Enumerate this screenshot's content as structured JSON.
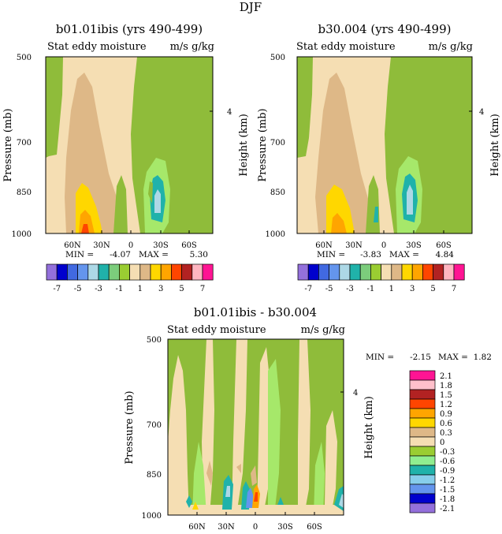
{
  "figure": {
    "title": "DJF",
    "bg": "#ffffff",
    "pressure_axis_label": "Pressure (mb)",
    "height_axis_label": "Height (km)",
    "header_left": "Stat eddy moisture",
    "header_right": "m/s g/kg",
    "min_label": "MIN =",
    "max_label": "MAX ="
  },
  "chart_data": [
    {
      "type": "heatmap",
      "id": "p1",
      "title": "b01.01ibis (yrs 490-499)",
      "subtitle_left": "Stat eddy moisture",
      "subtitle_right": "m/s g/kg",
      "xlabel": "",
      "ylabel": "Pressure (mb)",
      "y2label": "Height (km)",
      "x_ticks": [
        "60N",
        "30N",
        "0",
        "30S",
        "60S"
      ],
      "y_ticks": [
        "500",
        "700",
        "850",
        "1000"
      ],
      "y2_ticks": [
        "4"
      ],
      "min": "-4.07",
      "max": "5.30",
      "colorbar_levels": [
        "-7",
        "-5",
        "-3",
        "-1",
        "1",
        "3",
        "5",
        "7"
      ]
    },
    {
      "type": "heatmap",
      "id": "p2",
      "title": "b30.004 (yrs 490-499)",
      "subtitle_left": "Stat eddy moisture",
      "subtitle_right": "m/s g/kg",
      "xlabel": "",
      "ylabel": "Pressure (mb)",
      "y2label": "Height (km)",
      "x_ticks": [
        "60N",
        "30N",
        "0",
        "30S",
        "60S"
      ],
      "y_ticks": [
        "500",
        "700",
        "850",
        "1000"
      ],
      "y2_ticks": [
        "4"
      ],
      "min": "-3.83",
      "max": "4.84",
      "colorbar_levels": [
        "-7",
        "-5",
        "-3",
        "-1",
        "1",
        "3",
        "5",
        "7"
      ]
    },
    {
      "type": "heatmap",
      "id": "p3",
      "title": "b01.01ibis - b30.004",
      "subtitle_left": "Stat eddy moisture",
      "subtitle_right": "m/s g/kg",
      "xlabel": "",
      "ylabel": "Pressure (mb)",
      "y2label": "Height (km)",
      "x_ticks": [
        "60N",
        "30N",
        "0",
        "30S",
        "60S"
      ],
      "y_ticks": [
        "500",
        "700",
        "850",
        "1000"
      ],
      "y2_ticks": [
        "4"
      ],
      "min": "-2.15",
      "max": "1.82",
      "colorbar_levels": [
        "2.1",
        "1.8",
        "1.5",
        "1.2",
        "0.9",
        "0.6",
        "0.3",
        "0",
        "-0.3",
        "-0.6",
        "-0.9",
        "-1.2",
        "-1.5",
        "-1.8",
        "-2.1"
      ]
    }
  ],
  "colorbar_colors_top": [
    "#9370db",
    "#0000cd",
    "#4169e1",
    "#6495ed",
    "#add8e6",
    "#20b2aa",
    "#7ccd7c",
    "#9acd32",
    "#f5deb3",
    "#deb887",
    "#ffd700",
    "#ffa500",
    "#ff4500",
    "#b22222",
    "#ffb6c1",
    "#ff1493"
  ],
  "colorbar_colors_diff": [
    "#ff1493",
    "#ffc0cb",
    "#b22222",
    "#ff4500",
    "#ffa500",
    "#ffd700",
    "#deb887",
    "#f5deb3",
    "#9acd32",
    "#90ee90",
    "#20b2aa",
    "#87ceeb",
    "#6495ed",
    "#0000cd",
    "#9370db"
  ],
  "palette": {
    "green": "#8fbc3a",
    "lightgreen": "#a6e86a",
    "wheat": "#f5deb3",
    "tan": "#deb887",
    "gold": "#ffd700",
    "orange": "#ffa500",
    "red": "#ff4500",
    "teal": "#20b2aa",
    "lightblue": "#add8e6",
    "blue": "#6495ed",
    "darkblue": "#0000cd"
  }
}
